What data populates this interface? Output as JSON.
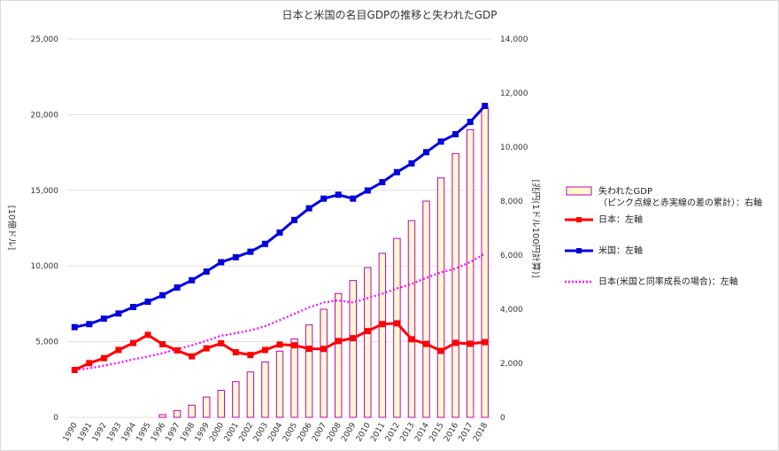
{
  "title": "日本と米国の名目GDPの推移と失われたGDP",
  "chart_data": {
    "type": "bar+line",
    "title": "日本と米国の名目GDPの推移と失われたGDP",
    "categories": [
      "1990",
      "1991",
      "1992",
      "1993",
      "1994",
      "1995",
      "1996",
      "1997",
      "1998",
      "1999",
      "2000",
      "2001",
      "2002",
      "2003",
      "2004",
      "2005",
      "2006",
      "2007",
      "2008",
      "2009",
      "2010",
      "2011",
      "2012",
      "2013",
      "2014",
      "2015",
      "2016",
      "2017",
      "2018"
    ],
    "y_left": {
      "label": "[10億ドル]",
      "ylim": [
        0,
        25000
      ],
      "ticks": [
        "0",
        "5,000",
        "10,000",
        "15,000",
        "20,000",
        "25,000"
      ],
      "tick_values": [
        0,
        5000,
        10000,
        15000,
        20000,
        25000
      ]
    },
    "y_right": {
      "label": "[兆円(1ドル100円計算)]",
      "ylim": [
        0,
        14000
      ],
      "ticks": [
        "0",
        "2,000",
        "4,000",
        "6,000",
        "8,000",
        "10,000",
        "12,000",
        "14,000"
      ],
      "tick_values": [
        0,
        2000,
        4000,
        6000,
        8000,
        10000,
        12000,
        14000
      ]
    },
    "series": [
      {
        "name": "失われたGDP（ピンク点線と赤実線の差の累計）：右軸",
        "legend_line1": "失われたGDP",
        "legend_line2": "（ピンク点線と赤実線の差の累計）：右軸",
        "type": "bar",
        "axis": "right",
        "color": "#c000c0",
        "fill": "#fffacd",
        "values": [
          0,
          0,
          0,
          0,
          0,
          0,
          100,
          250,
          450,
          750,
          1000,
          1320,
          1680,
          2050,
          2450,
          2900,
          3420,
          4000,
          4580,
          5060,
          5540,
          6070,
          6620,
          7280,
          8000,
          8860,
          9760,
          10640,
          11460
        ]
      },
      {
        "name": "日本：左軸",
        "type": "line",
        "axis": "left",
        "color": "#ff0000",
        "marker": "square",
        "values": [
          3130,
          3580,
          3910,
          4450,
          4910,
          5450,
          4830,
          4420,
          4030,
          4560,
          4890,
          4300,
          4120,
          4450,
          4810,
          4760,
          4530,
          4520,
          5040,
          5230,
          5700,
          6160,
          6210,
          5160,
          4850,
          4390,
          4920,
          4860,
          4970
        ]
      },
      {
        "name": "米国：左軸",
        "type": "line",
        "axis": "left",
        "color": "#0000e0",
        "marker": "square",
        "values": [
          5960,
          6160,
          6520,
          6860,
          7290,
          7640,
          8070,
          8580,
          9060,
          9630,
          10250,
          10580,
          10940,
          11460,
          12210,
          13040,
          13810,
          14450,
          14710,
          14450,
          14990,
          15540,
          16200,
          16780,
          17520,
          18220,
          18710,
          19520,
          20580
        ]
      },
      {
        "name": "日本(米国と同率成長の場合)：左軸",
        "type": "line",
        "axis": "left",
        "color": "#ff00ff",
        "style": "dotted",
        "values": [
          3130,
          3240,
          3420,
          3600,
          3830,
          4020,
          4240,
          4510,
          4760,
          5060,
          5390,
          5560,
          5750,
          6020,
          6420,
          6850,
          7260,
          7590,
          7730,
          7590,
          7880,
          8170,
          8510,
          8820,
          9210,
          9580,
          9830,
          10260,
          10820
        ]
      }
    ]
  },
  "legend": {
    "items": [
      {
        "line1": "失われたGDP",
        "line2": "（ピンク点線と赤実線の差の累計）：右軸"
      },
      {
        "line1": "日本：左軸"
      },
      {
        "line1": "米国：左軸"
      },
      {
        "line1": "日本(米国と同率成長の場合)：左軸"
      }
    ]
  }
}
